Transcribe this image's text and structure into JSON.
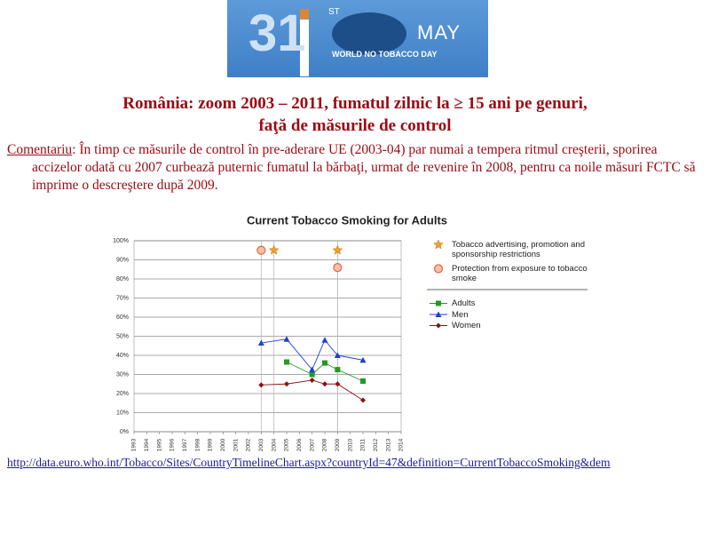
{
  "logo": {
    "number": "31",
    "suffix": "ST",
    "month": "MAY",
    "caption": "WORLD NO TOBACCO DAY"
  },
  "title": {
    "line1": "România: zoom 2003 – 2011, fumatul zilnic la ≥ 15 ani pe genuri,",
    "line2": "faţă de măsurile de control"
  },
  "comment": {
    "label": "Comentariu",
    "text": ": În timp ce măsurile de control în pre-aderare UE (2003-04) par numai a tempera ritmul creşterii, sporirea accizelor odată cu 2007 curbează puternic fumatul la bărbaţi, urmat de revenire în 2008, pentru ca noile măsuri FCTC să imprime o descreştere după 2009."
  },
  "chart_data": {
    "type": "line",
    "title": "Current Tobacco Smoking for Adults",
    "xlim": [
      1993,
      2014
    ],
    "xticks": [
      1993,
      1994,
      1995,
      1996,
      1997,
      1998,
      1999,
      2000,
      2001,
      2002,
      2003,
      2004,
      2005,
      2006,
      2007,
      2008,
      2009,
      2010,
      2011,
      2012,
      2013,
      2014
    ],
    "ylim": [
      0,
      100
    ],
    "yticks": [
      {
        "value": 0,
        "label": "0%"
      },
      {
        "value": 10,
        "label": "10%"
      },
      {
        "value": 20,
        "label": "20%"
      },
      {
        "value": 30,
        "label": "30%"
      },
      {
        "value": 40,
        "label": "40%"
      },
      {
        "value": 50,
        "label": "50%"
      },
      {
        "value": 60,
        "label": "60%"
      },
      {
        "value": 70,
        "label": "70%"
      },
      {
        "value": 80,
        "label": "80%"
      },
      {
        "value": 90,
        "label": "90%"
      },
      {
        "value": 100,
        "label": "100%"
      }
    ],
    "grid": true,
    "events": [
      {
        "name": "Tobacco advertising, promotion and sponsorship restrictions",
        "color": "#f0a030",
        "marker": "star",
        "x": [
          2004,
          2009
        ],
        "values": [
          95,
          95
        ]
      },
      {
        "name": "Protection from exposure to tobacco smoke",
        "color": "#e06848",
        "marker": "circle",
        "x": [
          2003,
          2009
        ],
        "values": [
          95,
          86
        ]
      }
    ],
    "series": [
      {
        "name": "Adults",
        "color": "#239a23",
        "marker": "square",
        "x": [
          2005,
          2007,
          2008,
          2009,
          2011
        ],
        "values": [
          36.5,
          30,
          36,
          32.5,
          26.5
        ]
      },
      {
        "name": "Men",
        "color": "#1f3fd0",
        "marker": "triangle",
        "x": [
          2003,
          2005,
          2007,
          2008,
          2009,
          2011
        ],
        "values": [
          46.5,
          48.5,
          32.5,
          48,
          40,
          37.5
        ]
      },
      {
        "name": "Women",
        "color": "#8b1010",
        "marker": "diamond",
        "x": [
          2003,
          2005,
          2007,
          2008,
          2009,
          2011
        ],
        "values": [
          24.5,
          25,
          27,
          25,
          25,
          16.5
        ]
      }
    ]
  },
  "link": "http://data.euro.who.int/Tobacco/Sites/CountryTimelineChart.aspx?countryId=47&definition=CurrentTobaccoSmoking&dem"
}
